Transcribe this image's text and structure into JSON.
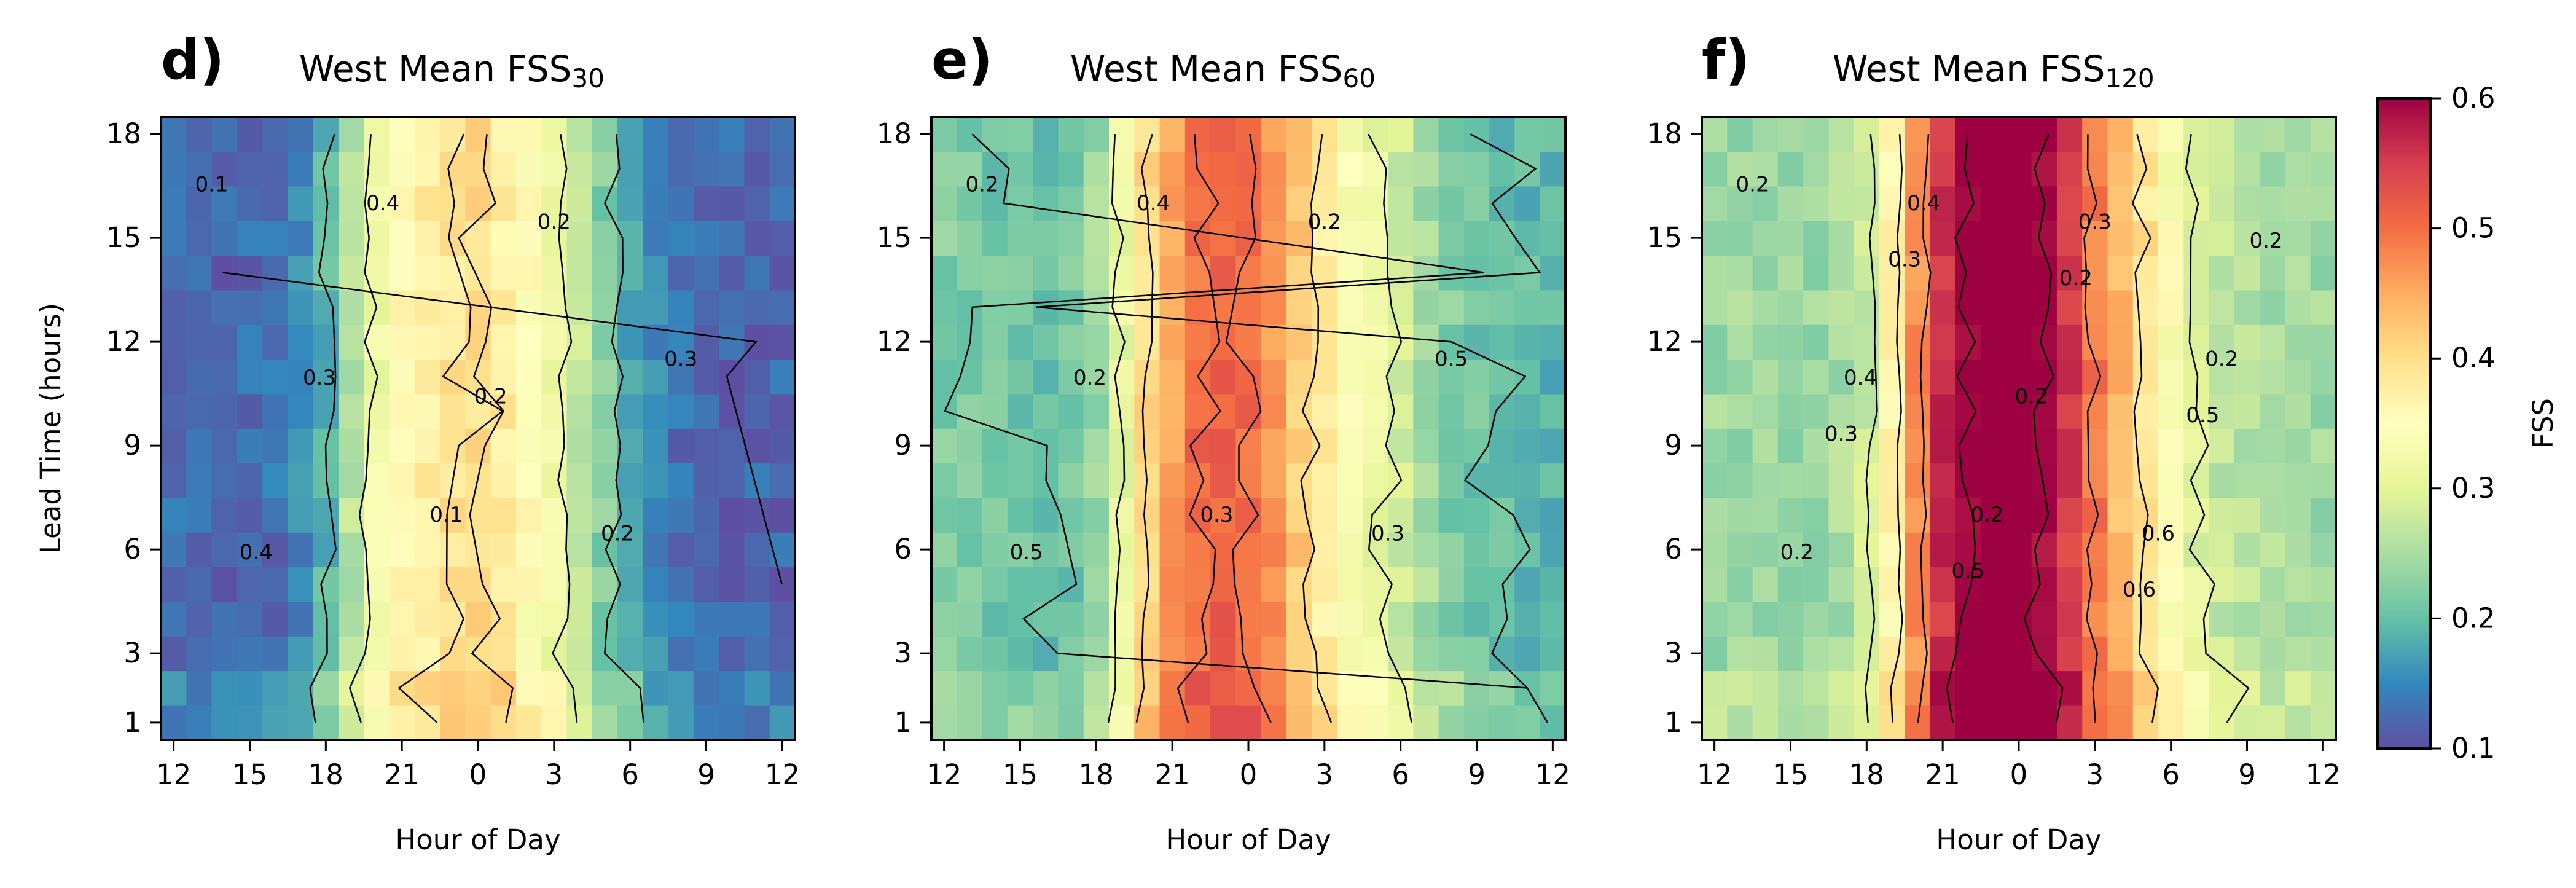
{
  "chart_data": [
    {
      "type": "heatmap",
      "panel_label": "d)",
      "title_main": "West Mean FSS",
      "title_sub": "30",
      "xlabel": "Hour of Day",
      "ylabel": "Lead Time (hours)",
      "x_ticks": [
        "12",
        "15",
        "18",
        "21",
        "0",
        "3",
        "6",
        "9",
        "12"
      ],
      "y_ticks": [
        "1",
        "3",
        "6",
        "9",
        "12",
        "15",
        "18"
      ],
      "y_tick_values": [
        1,
        3,
        6,
        9,
        12,
        15,
        18
      ],
      "ylim": [
        0.5,
        18.5
      ],
      "hours_of_day": [
        12,
        13,
        14,
        15,
        16,
        17,
        18,
        19,
        20,
        21,
        22,
        23,
        0,
        1,
        2,
        3,
        4,
        5,
        6,
        7,
        8,
        9,
        10,
        11,
        12
      ],
      "lead_times": [
        1,
        2,
        3,
        4,
        5,
        6,
        7,
        8,
        9,
        10,
        11,
        12,
        13,
        14,
        15,
        16,
        17,
        18
      ],
      "profile": {
        "hour_offsets": [
          0,
          2,
          4,
          5,
          6,
          7,
          8,
          9,
          10,
          11,
          12,
          13,
          14,
          15,
          16,
          17,
          18,
          19,
          20,
          22,
          24
        ],
        "fss": [
          0.13,
          0.12,
          0.13,
          0.15,
          0.19,
          0.26,
          0.32,
          0.36,
          0.38,
          0.39,
          0.4,
          0.38,
          0.35,
          0.32,
          0.27,
          0.22,
          0.18,
          0.15,
          0.13,
          0.12,
          0.12
        ]
      },
      "contour_levels": [
        0.1,
        0.2,
        0.3,
        0.4
      ],
      "contour_labels": [
        "0.1",
        "0.1",
        "0.3",
        "0.4",
        "0.2",
        "0.3",
        "0.2",
        "0.4",
        "0.2"
      ]
    },
    {
      "type": "heatmap",
      "panel_label": "e)",
      "title_main": "West Mean FSS",
      "title_sub": "60",
      "xlabel": "Hour of Day",
      "ylabel": "",
      "x_ticks": [
        "12",
        "15",
        "18",
        "21",
        "0",
        "3",
        "6",
        "9",
        "12"
      ],
      "y_ticks": [
        "1",
        "3",
        "6",
        "9",
        "12",
        "15",
        "18"
      ],
      "y_tick_values": [
        1,
        3,
        6,
        9,
        12,
        15,
        18
      ],
      "ylim": [
        0.5,
        18.5
      ],
      "hours_of_day": [
        12,
        13,
        14,
        15,
        16,
        17,
        18,
        19,
        20,
        21,
        22,
        23,
        0,
        1,
        2,
        3,
        4,
        5,
        6,
        7,
        8,
        9,
        10,
        11,
        12
      ],
      "lead_times": [
        1,
        2,
        3,
        4,
        5,
        6,
        7,
        8,
        9,
        10,
        11,
        12,
        13,
        14,
        15,
        16,
        17,
        18
      ],
      "profile": {
        "hour_offsets": [
          0,
          2,
          4,
          5,
          6,
          7,
          8,
          9,
          10,
          11,
          12,
          13,
          14,
          15,
          16,
          17,
          18,
          19,
          20,
          22,
          24
        ],
        "fss": [
          0.22,
          0.21,
          0.2,
          0.21,
          0.24,
          0.31,
          0.4,
          0.46,
          0.5,
          0.51,
          0.5,
          0.47,
          0.42,
          0.38,
          0.34,
          0.31,
          0.28,
          0.25,
          0.22,
          0.2,
          0.19
        ]
      },
      "contour_levels": [
        0.2,
        0.3,
        0.4,
        0.5
      ],
      "contour_labels": [
        "0.2",
        "0.3",
        "0.5",
        "0.4",
        "0.3",
        "0.2",
        "0.2",
        "0.5"
      ]
    },
    {
      "type": "heatmap",
      "panel_label": "f)",
      "title_main": "West Mean FSS",
      "title_sub": "120",
      "xlabel": "Hour of Day",
      "ylabel": "",
      "x_ticks": [
        "12",
        "15",
        "18",
        "21",
        "0",
        "3",
        "6",
        "9",
        "12"
      ],
      "y_ticks": [
        "1",
        "3",
        "6",
        "9",
        "12",
        "15",
        "18"
      ],
      "y_tick_values": [
        1,
        3,
        6,
        9,
        12,
        15,
        18
      ],
      "ylim": [
        0.5,
        18.5
      ],
      "hours_of_day": [
        12,
        13,
        14,
        15,
        16,
        17,
        18,
        19,
        20,
        21,
        22,
        23,
        0,
        1,
        2,
        3,
        4,
        5,
        6,
        7,
        8,
        9,
        10,
        11,
        12
      ],
      "lead_times": [
        1,
        2,
        3,
        4,
        5,
        6,
        7,
        8,
        9,
        10,
        11,
        12,
        13,
        14,
        15,
        16,
        17,
        18
      ],
      "profile": {
        "hour_offsets": [
          0,
          2,
          4,
          5,
          6,
          7,
          8,
          9,
          10,
          11,
          12,
          13,
          14,
          15,
          16,
          17,
          18,
          19,
          20,
          22,
          24
        ],
        "fss": [
          0.24,
          0.24,
          0.24,
          0.25,
          0.28,
          0.36,
          0.47,
          0.56,
          0.61,
          0.63,
          0.62,
          0.6,
          0.55,
          0.49,
          0.44,
          0.39,
          0.34,
          0.3,
          0.27,
          0.25,
          0.24
        ]
      },
      "contour_levels": [
        0.2,
        0.3,
        0.4,
        0.5,
        0.6
      ],
      "contour_labels": [
        "0.2",
        "0.2",
        "0.2",
        "0.4",
        "0.6",
        "0.4",
        "0.3",
        "0.2",
        "0.2",
        "0.2",
        "0.5",
        "0.5",
        "0.3",
        "0.6",
        "0.3",
        "0.2"
      ]
    }
  ],
  "colorbar": {
    "label": "FSS",
    "colormap": "Spectral_r",
    "range": [
      0.1,
      0.6
    ],
    "ticks": [
      "0.1",
      "0.2",
      "0.3",
      "0.4",
      "0.5",
      "0.6"
    ],
    "tick_values": [
      0.1,
      0.2,
      0.3,
      0.4,
      0.5,
      0.6
    ],
    "stops": [
      "#5e4fa2",
      "#3288bd",
      "#66c2a5",
      "#abdda4",
      "#e6f598",
      "#ffffbf",
      "#fee08b",
      "#fdae61",
      "#f46d43",
      "#d53e4f",
      "#9e0142"
    ]
  }
}
